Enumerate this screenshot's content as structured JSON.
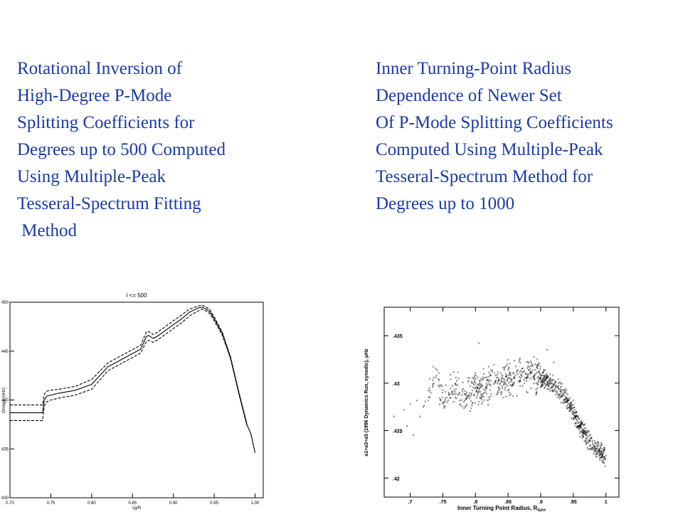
{
  "captions": {
    "left": [
      "Rotational Inversion of",
      "High-Degree P-Mode",
      "Splitting Coefficients for",
      "Degrees up to 500 Computed",
      "Using Multiple-Peak",
      "Tesseral-Spectrum Fitting",
      " Method"
    ],
    "right": [
      "Inner Turning-Point Radius",
      "Dependence of Newer Set",
      "Of P-Mode Splitting Coefficients",
      "Computed Using Multiple-Peak",
      "Tesseral-Spectrum Method for",
      "Degrees up to 1000"
    ]
  },
  "chart_data": [
    {
      "type": "line",
      "title": "l <= 500",
      "xlabel": "cg/R",
      "ylabel": "Omega (nHz)",
      "xlim": [
        0.7,
        1.01
      ],
      "ylim": [
        430,
        450
      ],
      "xticks": [
        "0.70",
        "0.75",
        "0.80",
        "0.85",
        "0.90",
        "0.95",
        "1.00"
      ],
      "yticks": [
        "430",
        "435",
        "440",
        "445",
        "450"
      ],
      "colors": {
        "line": "#000000"
      },
      "series": [
        {
          "style": "solid",
          "x": [
            0.7,
            0.74,
            0.742,
            0.745,
            0.75,
            0.76,
            0.78,
            0.8,
            0.82,
            0.84,
            0.86,
            0.867,
            0.87,
            0.875,
            0.88,
            0.89,
            0.9,
            0.91,
            0.92,
            0.93,
            0.935,
            0.94,
            0.945,
            0.95,
            0.96,
            0.97,
            0.98,
            0.99,
            0.995,
            1.0
          ],
          "y": [
            438.7,
            438.7,
            440.0,
            440.4,
            440.5,
            440.7,
            441.0,
            441.6,
            443.4,
            444.3,
            445.2,
            446.5,
            446.6,
            446.3,
            446.5,
            447.1,
            447.7,
            448.3,
            449.0,
            449.4,
            449.5,
            449.3,
            449.0,
            448.3,
            446.8,
            444.3,
            440.8,
            437.5,
            436.5,
            434.6
          ]
        },
        {
          "style": "dashed",
          "x": [
            0.7,
            0.74,
            0.742,
            0.745,
            0.75,
            0.76,
            0.78,
            0.8,
            0.82,
            0.84,
            0.86,
            0.867,
            0.87,
            0.875,
            0.88,
            0.89,
            0.9,
            0.91,
            0.92,
            0.93,
            0.935,
            0.94,
            0.945,
            0.95,
            0.96,
            0.97,
            0.98,
            0.99
          ],
          "y": [
            439.5,
            439.5,
            440.6,
            440.9,
            441.0,
            441.1,
            441.4,
            442.1,
            443.8,
            444.7,
            445.6,
            447.0,
            447.0,
            446.7,
            446.9,
            447.5,
            448.1,
            448.7,
            449.3,
            449.6,
            449.7,
            449.5,
            449.2,
            448.5,
            446.9,
            444.4,
            440.9,
            437.6
          ]
        },
        {
          "style": "dashed",
          "x": [
            0.7,
            0.74,
            0.742,
            0.745,
            0.75,
            0.76,
            0.78,
            0.8,
            0.82,
            0.84,
            0.86,
            0.867,
            0.87,
            0.875,
            0.88,
            0.89,
            0.9,
            0.91,
            0.92,
            0.93,
            0.935,
            0.94,
            0.945,
            0.95,
            0.96,
            0.97,
            0.98,
            0.99
          ],
          "y": [
            437.9,
            437.9,
            439.4,
            439.8,
            440.0,
            440.2,
            440.5,
            441.1,
            443.0,
            443.9,
            444.8,
            446.0,
            446.1,
            445.9,
            446.1,
            446.7,
            447.3,
            447.9,
            448.6,
            449.1,
            449.3,
            449.1,
            448.8,
            448.1,
            446.6,
            444.2,
            440.7,
            437.4
          ]
        }
      ]
    },
    {
      "type": "scatter",
      "xlabel": "Inner Turning Point Radius, R",
      "xlabel_sub": "turn",
      "ylabel": "a1+a3+a5 (1996 Dynamics Run, synodic), μHz",
      "xlim": [
        0.66,
        1.02
      ],
      "ylim": [
        0.418,
        0.438
      ],
      "xticks": [
        ".7",
        ".75",
        ".8",
        ".85",
        ".9",
        ".95",
        "1"
      ],
      "yticks": [
        ".42",
        ".425",
        ".43",
        ".435"
      ],
      "colors": {
        "points": "#222222"
      },
      "points_approximate": {
        "x": [
          0.675,
          0.68,
          0.685,
          0.69,
          0.695,
          0.7,
          0.705,
          0.71,
          0.715,
          0.72,
          0.73,
          0.74,
          0.745,
          0.75,
          0.76,
          0.77,
          0.78,
          0.79,
          0.8,
          0.81,
          0.82,
          0.83,
          0.84,
          0.85,
          0.86,
          0.87,
          0.88,
          0.89,
          0.9,
          0.91,
          0.92,
          0.93,
          0.935,
          0.94,
          0.945,
          0.95,
          0.955,
          0.96,
          0.965,
          0.97,
          0.975,
          0.98,
          0.985,
          0.99,
          0.995,
          1.0,
          0.805,
          0.91,
          0.92,
          0.95
        ],
        "y": [
          0.4265,
          0.4198,
          0.4248,
          0.4272,
          0.4255,
          0.4278,
          0.4245,
          0.4282,
          0.4265,
          0.4275,
          0.4292,
          0.4308,
          0.4296,
          0.4285,
          0.4288,
          0.4294,
          0.4291,
          0.4287,
          0.4295,
          0.4297,
          0.4299,
          0.4301,
          0.4303,
          0.4305,
          0.4306,
          0.4308,
          0.4309,
          0.4307,
          0.4306,
          0.4302,
          0.4298,
          0.4292,
          0.4288,
          0.4282,
          0.4276,
          0.427,
          0.4262,
          0.4255,
          0.425,
          0.4245,
          0.424,
          0.4235,
          0.4231,
          0.4228,
          0.4225,
          0.4224,
          0.4342,
          0.4335,
          0.4322,
          0.4282
        ]
      }
    }
  ]
}
